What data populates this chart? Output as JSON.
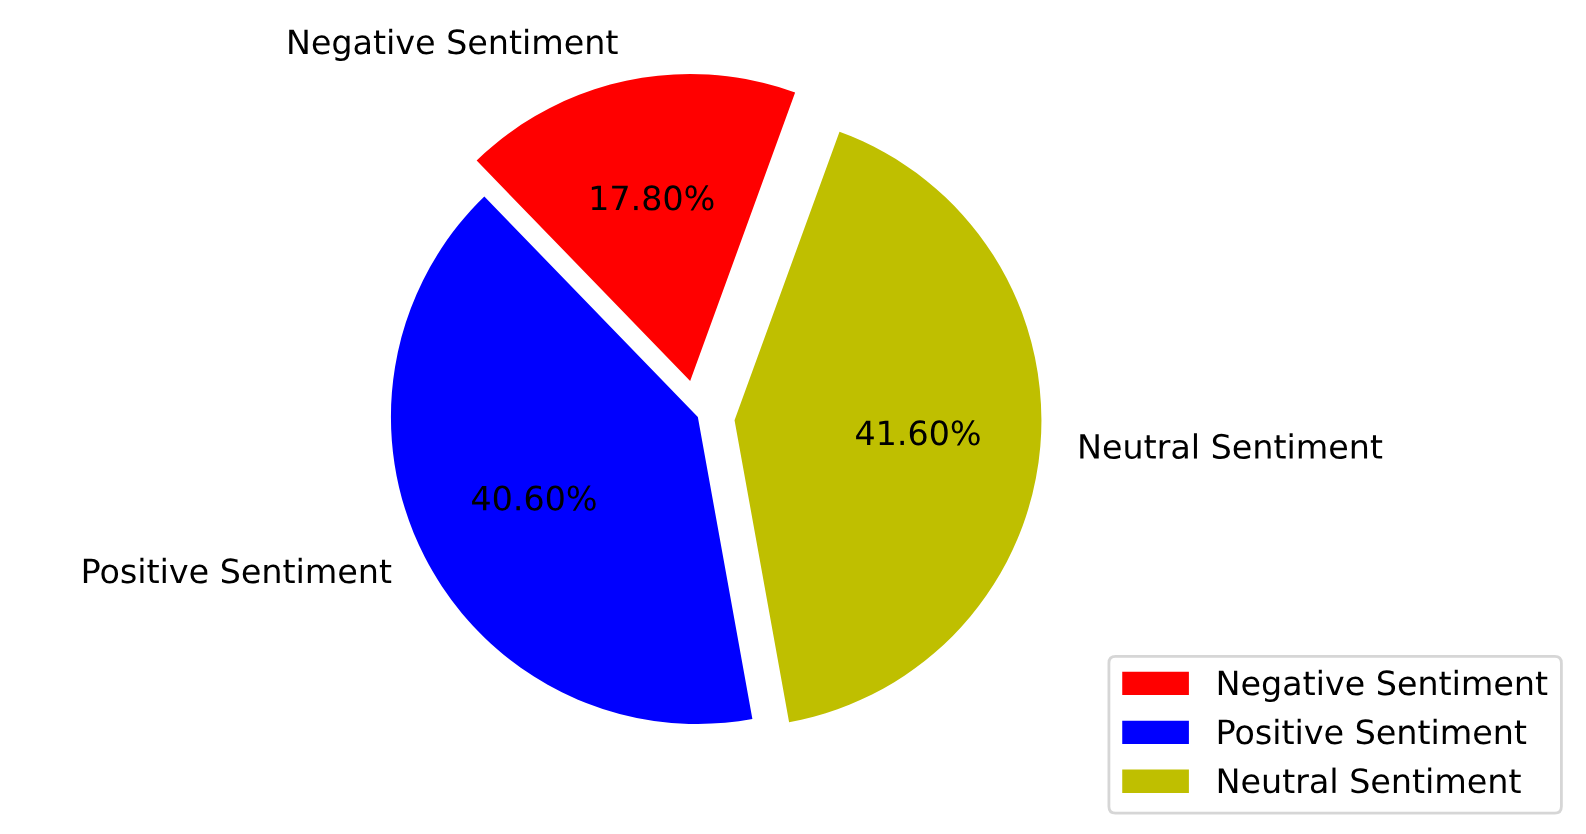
{
  "chart_data": {
    "type": "pie",
    "categories": [
      "Negative Sentiment",
      "Positive Sentiment",
      "Neutral Sentiment"
    ],
    "values": [
      17.8,
      40.6,
      41.6
    ],
    "colors": [
      "#ff0000",
      "#0000ff",
      "#bfbf00"
    ],
    "value_labels": [
      "17.80%",
      "40.60%",
      "41.60%"
    ],
    "legend": "bottom right"
  }
}
